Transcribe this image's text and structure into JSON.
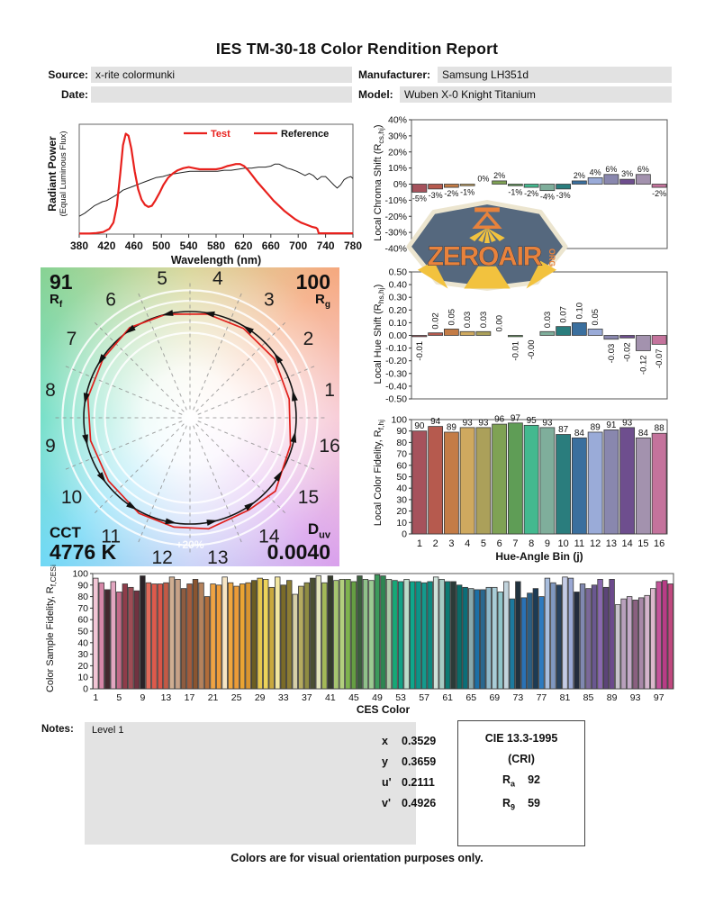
{
  "title": "IES TM-30-18 Color Rendition Report",
  "header": {
    "source_label": "Source:",
    "source_value": "x-rite colormunki",
    "date_label": "Date:",
    "date_value": "",
    "manufacturer_label": "Manufacturer:",
    "manufacturer_value": "Samsung LH351d",
    "model_label": "Model:",
    "model_value": "Wuben X-0 Knight Titanium"
  },
  "watermark": {
    "text": "ZEROAIR",
    "suffix": "ORG",
    "bg": "#55687e",
    "border": "#ece5cf",
    "orange": "#e8823c",
    "yellow": "#f2c23e"
  },
  "bin_colors": [
    "#a6525c",
    "#b65a4e",
    "#c47c46",
    "#cfa95f",
    "#aba05a",
    "#7fa254",
    "#5f9d56",
    "#43b98f",
    "#7fae9b",
    "#2a7d7d",
    "#3a6f9e",
    "#9aabd8",
    "#8987ae",
    "#6e4e8e",
    "#a392ae",
    "#c4739c"
  ],
  "chart_data": [
    {
      "id": "spectral",
      "type": "line",
      "xlabel": "Wavelength (nm)",
      "ylabel_line1": "Radiant Power",
      "ylabel_line2": "(Equal Luminous Flux)",
      "xlim": [
        380,
        780
      ],
      "xticks": [
        380,
        420,
        460,
        500,
        540,
        580,
        620,
        660,
        700,
        740,
        780
      ],
      "ylim": [
        0,
        1.05
      ],
      "grid": false,
      "legend_position": "top-right",
      "series": [
        {
          "name": "Test",
          "color": "#e8211d",
          "width": 2.2,
          "points": [
            [
              380,
              0.005
            ],
            [
              395,
              0.005
            ],
            [
              405,
              0.01
            ],
            [
              415,
              0.02
            ],
            [
              424,
              0.05
            ],
            [
              430,
              0.11
            ],
            [
              435,
              0.27
            ],
            [
              440,
              0.58
            ],
            [
              444,
              0.85
            ],
            [
              448,
              0.96
            ],
            [
              452,
              0.94
            ],
            [
              456,
              0.82
            ],
            [
              461,
              0.6
            ],
            [
              466,
              0.43
            ],
            [
              471,
              0.33
            ],
            [
              476,
              0.28
            ],
            [
              481,
              0.26
            ],
            [
              486,
              0.27
            ],
            [
              491,
              0.32
            ],
            [
              497,
              0.39
            ],
            [
              503,
              0.47
            ],
            [
              510,
              0.54
            ],
            [
              517,
              0.58
            ],
            [
              524,
              0.61
            ],
            [
              532,
              0.63
            ],
            [
              540,
              0.64
            ],
            [
              548,
              0.63
            ],
            [
              556,
              0.62
            ],
            [
              564,
              0.62
            ],
            [
              572,
              0.62
            ],
            [
              580,
              0.62
            ],
            [
              588,
              0.63
            ],
            [
              596,
              0.65
            ],
            [
              603,
              0.66
            ],
            [
              609,
              0.67
            ],
            [
              615,
              0.67
            ],
            [
              621,
              0.65
            ],
            [
              627,
              0.61
            ],
            [
              633,
              0.56
            ],
            [
              640,
              0.5
            ],
            [
              648,
              0.44
            ],
            [
              656,
              0.38
            ],
            [
              664,
              0.32
            ],
            [
              672,
              0.27
            ],
            [
              680,
              0.22
            ],
            [
              688,
              0.18
            ],
            [
              696,
              0.14
            ],
            [
              704,
              0.11
            ],
            [
              712,
              0.09
            ],
            [
              720,
              0.07
            ],
            [
              726,
              0.06
            ],
            [
              728,
              0.05
            ],
            [
              730,
              0.008
            ],
            [
              740,
              0.008
            ],
            [
              760,
              0.008
            ],
            [
              780,
              0.008
            ]
          ]
        },
        {
          "name": "Reference",
          "color": "#222222",
          "width": 1,
          "points": [
            [
              380,
              0.17
            ],
            [
              388,
              0.2
            ],
            [
              396,
              0.24
            ],
            [
              402,
              0.27
            ],
            [
              408,
              0.29
            ],
            [
              414,
              0.31
            ],
            [
              420,
              0.32
            ],
            [
              428,
              0.35
            ],
            [
              436,
              0.38
            ],
            [
              444,
              0.42
            ],
            [
              452,
              0.44
            ],
            [
              460,
              0.46
            ],
            [
              468,
              0.48
            ],
            [
              476,
              0.5
            ],
            [
              484,
              0.52
            ],
            [
              492,
              0.54
            ],
            [
              502,
              0.55
            ],
            [
              512,
              0.57
            ],
            [
              522,
              0.58
            ],
            [
              532,
              0.59
            ],
            [
              542,
              0.6
            ],
            [
              552,
              0.6
            ],
            [
              562,
              0.6
            ],
            [
              572,
              0.6
            ],
            [
              582,
              0.6
            ],
            [
              592,
              0.61
            ],
            [
              602,
              0.61
            ],
            [
              612,
              0.62
            ],
            [
              622,
              0.63
            ],
            [
              632,
              0.63
            ],
            [
              642,
              0.64
            ],
            [
              652,
              0.64
            ],
            [
              660,
              0.65
            ],
            [
              666,
              0.67
            ],
            [
              672,
              0.67
            ],
            [
              678,
              0.65
            ],
            [
              684,
              0.63
            ],
            [
              690,
              0.62
            ],
            [
              698,
              0.6
            ],
            [
              704,
              0.58
            ],
            [
              710,
              0.56
            ],
            [
              716,
              0.58
            ],
            [
              722,
              0.56
            ],
            [
              728,
              0.52
            ],
            [
              734,
              0.55
            ],
            [
              740,
              0.55
            ],
            [
              746,
              0.51
            ],
            [
              752,
              0.47
            ],
            [
              757,
              0.44
            ],
            [
              762,
              0.47
            ],
            [
              767,
              0.52
            ],
            [
              772,
              0.54
            ],
            [
              777,
              0.55
            ],
            [
              780,
              0.53
            ]
          ]
        }
      ]
    },
    {
      "id": "chroma_shift",
      "type": "bar",
      "ylabel_parts": {
        "pre": "Local Chroma Shift (R",
        "sub": "cs,hj",
        "post": ")"
      },
      "ylim": [
        -40,
        40
      ],
      "ytick_step": 10,
      "ytick_fmt": "pct",
      "categories": [
        1,
        2,
        3,
        4,
        5,
        6,
        7,
        8,
        9,
        10,
        11,
        12,
        13,
        14,
        15,
        16
      ],
      "values": [
        -5,
        -3,
        -2,
        -1,
        0,
        2,
        -1,
        -2,
        -4,
        -3,
        2,
        4,
        6,
        3,
        6,
        -2
      ],
      "labels": [
        "-5%",
        "-3%",
        "-2%",
        "-1%",
        "0%",
        "2%",
        "-1%",
        "-2%",
        "-4%",
        "-3%",
        "2%",
        "4%",
        "6%",
        "3%",
        "6%",
        "-2%"
      ]
    },
    {
      "id": "hue_shift",
      "type": "bar",
      "ylabel_parts": {
        "pre": "Local Hue Shift (R",
        "sub": "hs,hj",
        "post": ")"
      },
      "ylim": [
        -0.5,
        0.5
      ],
      "ytick_step": 0.1,
      "ytick_fmt": "dec",
      "categories": [
        1,
        2,
        3,
        4,
        5,
        6,
        7,
        8,
        9,
        10,
        11,
        12,
        13,
        14,
        15,
        16
      ],
      "values": [
        -0.01,
        0.02,
        0.05,
        0.03,
        0.03,
        0.0,
        -0.01,
        -0.0,
        0.03,
        0.07,
        0.1,
        0.05,
        -0.03,
        -0.02,
        -0.12,
        -0.07
      ],
      "labels": [
        "-0.01",
        "0.02",
        "0.05",
        "0.03",
        "0.03",
        "0.00",
        "-0.01",
        "-0.00",
        "0.03",
        "0.07",
        "0.10",
        "0.05",
        "-0.03",
        "-0.02",
        "-0.12",
        "-0.07"
      ]
    },
    {
      "id": "local_fidelity",
      "type": "bar",
      "ylabel_parts": {
        "pre": "Local Color Fidelity, R",
        "sub": "f,hj",
        "post": ""
      },
      "xlabel": "Hue-Angle Bin (j)",
      "ylim": [
        0,
        100
      ],
      "ytick_step": 10,
      "ytick_fmt": "int",
      "categories": [
        1,
        2,
        3,
        4,
        5,
        6,
        7,
        8,
        9,
        10,
        11,
        12,
        13,
        14,
        15,
        16
      ],
      "values": [
        90,
        94,
        89,
        93,
        93,
        96,
        97,
        95,
        93,
        87,
        84,
        89,
        91,
        93,
        84,
        88
      ]
    },
    {
      "id": "ces_fidelity",
      "type": "bar",
      "ylabel_parts": {
        "pre": "Color Sample Fidelity, R",
        "sub": "f,CESi",
        "post": ""
      },
      "xlabel": "CES Color",
      "ylim": [
        0,
        100
      ],
      "ytick_step": 10,
      "ytick_fmt": "int",
      "xtick_every": 4,
      "xtick_start": 1,
      "values": [
        96,
        92,
        86,
        93,
        84,
        91,
        88,
        85,
        98,
        92,
        91,
        91,
        92,
        97,
        95,
        87,
        91,
        95,
        92,
        80,
        91,
        90,
        97,
        92,
        89,
        91,
        92,
        94,
        96,
        95,
        88,
        97,
        90,
        94,
        82,
        89,
        92,
        96,
        98,
        92,
        98,
        94,
        95,
        95,
        93,
        98,
        95,
        94,
        99,
        98,
        95,
        94,
        93,
        95,
        93,
        93,
        92,
        93,
        97,
        95,
        93,
        93,
        90,
        88,
        87,
        86,
        86,
        88,
        88,
        84,
        93,
        78,
        93,
        79,
        83,
        87,
        80,
        96,
        92,
        90,
        97,
        96,
        84,
        91,
        87,
        90,
        95,
        88,
        95,
        73,
        78,
        80,
        77,
        79,
        81,
        87,
        93,
        94,
        91
      ],
      "colors": [
        "#f2c6d6",
        "#d687a8",
        "#43282e",
        "#e2a6c0",
        "#c26a88",
        "#8e3c4a",
        "#9e4c55",
        "#703240",
        "#2b2328",
        "#e16a5a",
        "#dd5a4c",
        "#d95548",
        "#c25a46",
        "#cfae92",
        "#c7a288",
        "#8e5c40",
        "#a55c3a",
        "#8a5530",
        "#b5825c",
        "#b06c3a",
        "#efa343",
        "#ee9c3a",
        "#f6e5c4",
        "#efa63e",
        "#ea9b38",
        "#eaa433",
        "#d99530",
        "#6c5e22",
        "#e7c84e",
        "#ecd35a",
        "#c9a83e",
        "#f2e6a0",
        "#7a6b28",
        "#8d7d33",
        "#d6cfa8",
        "#b5ab60",
        "#8f8c42",
        "#4a4f33",
        "#e2e4bc",
        "#a3b858",
        "#343b2c",
        "#a6c470",
        "#b2cf7e",
        "#7fb34e",
        "#659e43",
        "#3a5f3c",
        "#8fc08a",
        "#9ccb93",
        "#3d9a5c",
        "#2e8552",
        "#abc9a8",
        "#17a877",
        "#12a286",
        "#bcdccb",
        "#0fa78c",
        "#0d9488",
        "#15998c",
        "#0c8a80",
        "#cfe2da",
        "#a8ccc4",
        "#0d7a72",
        "#2b3b38",
        "#0a6b68",
        "#0c6e78",
        "#88a8ac",
        "#1d6fa5",
        "#2a678e",
        "#8fb8c9",
        "#a9ccd6",
        "#8fc4c9",
        "#c2d4dd",
        "#1c7a9e",
        "#20323e",
        "#2a72b5",
        "#2a5f86",
        "#1c3b55",
        "#2e7abf",
        "#a9bede",
        "#8098c0",
        "#28425f",
        "#c5cce6",
        "#9aa8d4",
        "#232c3c",
        "#8088b0",
        "#7a6898",
        "#6a5890",
        "#8a68b0",
        "#5c4478",
        "#6c4a8c",
        "#c8c2cc",
        "#b8a0bc",
        "#c4aac8",
        "#8a6080",
        "#a888a8",
        "#d4b4cc",
        "#dcb8cc",
        "#c4539a",
        "#b83d86",
        "#c0487e"
      ]
    },
    {
      "id": "cvg",
      "type": "color-vector-graphic",
      "rf_value": "91",
      "rf_base": "R",
      "rf_sub": "f",
      "rg_value": "100",
      "rg_base": "R",
      "rg_sub": "g",
      "cct_label": "CCT",
      "cct_value": "4776 K",
      "duv_base": "D",
      "duv_sub": "uv",
      "duv_value": "0.0040",
      "ring_label": "+20%",
      "bins": [
        1,
        2,
        3,
        4,
        5,
        6,
        7,
        8,
        9,
        10,
        11,
        12,
        13,
        14,
        15,
        16
      ],
      "chroma_mult": [
        0.95,
        0.97,
        0.98,
        0.99,
        1.0,
        1.02,
        0.99,
        0.98,
        0.96,
        0.97,
        1.02,
        1.04,
        1.06,
        1.03,
        1.06,
        0.98
      ],
      "hue_offset_deg": [
        -0.6,
        1.1,
        2.9,
        1.7,
        1.7,
        0,
        -0.6,
        0,
        1.7,
        4,
        5.7,
        2.9,
        -1.7,
        -1.1,
        -6.9,
        -4
      ]
    }
  ],
  "notes": {
    "label": "Notes:",
    "value": "Level 1"
  },
  "chromaticity": {
    "rows": [
      {
        "label": "x",
        "value": "0.3529"
      },
      {
        "label": "y",
        "value": "0.3659"
      },
      {
        "label": "u'",
        "value": "0.2111"
      },
      {
        "label": "v'",
        "value": "0.4926"
      }
    ]
  },
  "cri_box": {
    "title": "CIE 13.3-1995",
    "subtitle": "(CRI)",
    "rows": [
      {
        "base": "R",
        "sub": "a",
        "value": "92"
      },
      {
        "base": "R",
        "sub": "9",
        "value": "59"
      }
    ]
  },
  "footer": "Colors are for visual orientation purposes only."
}
